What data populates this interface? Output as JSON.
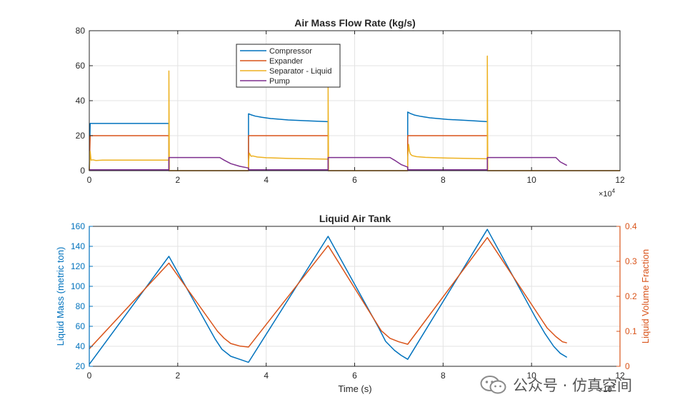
{
  "watermark": {
    "text": "公众号 · 仿真空间"
  },
  "colors": {
    "compressor": "#0072BD",
    "expander": "#D95319",
    "separator": "#EDB120",
    "pump": "#7E2F8E",
    "mass": "#0072BD",
    "fraction": "#D95319"
  },
  "chart_data": [
    {
      "type": "line",
      "title": "Air Mass Flow Rate (kg/s)",
      "xlabel": "",
      "ylabel": "",
      "xlim": [
        0,
        12
      ],
      "ylim": [
        0,
        80
      ],
      "xticks": [
        "0",
        "2",
        "4",
        "6",
        "8",
        "10",
        "12"
      ],
      "yticks": [
        "0",
        "20",
        "40",
        "60",
        "80"
      ],
      "x_exponent": "×10",
      "x_exponent_power": "4",
      "grid": true,
      "legend_position": "top-center",
      "series": [
        {
          "name": "Compressor",
          "x": [
            0,
            0.02,
            1.8,
            1.8,
            3.6,
            3.6,
            3.65,
            3.75,
            3.9,
            4.1,
            4.5,
            5.0,
            5.4,
            5.4,
            7.2,
            7.2,
            7.25,
            7.35,
            7.5,
            7.7,
            8.1,
            8.6,
            9.0,
            9.0,
            12
          ],
          "y": [
            0,
            27,
            27,
            0,
            0,
            32.5,
            32,
            31.2,
            30.5,
            29.8,
            29,
            28.4,
            28,
            0,
            0,
            33.5,
            32.8,
            31.8,
            31,
            30.2,
            29.3,
            28.6,
            28,
            0,
            0
          ]
        },
        {
          "name": "Expander",
          "x": [
            0,
            0.02,
            1.8,
            1.8,
            3.6,
            3.6,
            5.4,
            5.4,
            7.2,
            7.2,
            9.0,
            9.0,
            12
          ],
          "y": [
            0,
            20,
            20,
            0,
            0,
            20,
            20,
            0,
            0,
            20,
            20,
            0,
            0
          ]
        },
        {
          "name": "Separator - Liquid",
          "x": [
            0,
            0.02,
            0.04,
            0.08,
            0.15,
            0.3,
            1.8,
            1.8,
            1.81,
            3.6,
            3.6,
            3.62,
            3.64,
            3.66,
            3.7,
            3.8,
            4.0,
            4.5,
            5.4,
            5.4,
            5.41,
            7.2,
            7.2,
            7.22,
            7.24,
            7.26,
            7.3,
            7.4,
            7.6,
            8.1,
            9.0,
            9.0,
            9.01,
            12
          ],
          "y": [
            0,
            11,
            6,
            6.2,
            5.8,
            6,
            6,
            57,
            0,
            0,
            5,
            10,
            9,
            8.2,
            8.4,
            7.8,
            7.4,
            7,
            6.6,
            48,
            0,
            0,
            8,
            15,
            11,
            9.5,
            8.6,
            8,
            7.6,
            7.2,
            6.8,
            65.5,
            0,
            0
          ]
        },
        {
          "name": "Pump",
          "x": [
            0,
            1.8,
            1.8,
            2.95,
            3.05,
            3.2,
            3.4,
            3.6,
            3.6,
            5.4,
            5.4,
            6.8,
            6.9,
            7.05,
            7.2,
            7.2,
            9.0,
            9.0,
            10.55,
            10.65,
            10.8
          ],
          "y": [
            0.5,
            0.5,
            7.5,
            7.5,
            6,
            4,
            2.5,
            1.5,
            0.5,
            0.5,
            7.5,
            7.5,
            6,
            3.5,
            2,
            0.5,
            0.5,
            7.5,
            7.5,
            5,
            3
          ]
        }
      ]
    },
    {
      "type": "line",
      "title": "Liquid Air Tank",
      "xlabel": "Time (s)",
      "ylabel": "Liquid Mass (metric ton)",
      "y2label": "Liquid Volume Fraction",
      "xlim": [
        0,
        12
      ],
      "ylim": [
        20,
        160
      ],
      "y2lim": [
        0,
        0.4
      ],
      "xticks": [
        "0",
        "2",
        "4",
        "6",
        "8",
        "10",
        "12"
      ],
      "yticks": [
        "20",
        "40",
        "60",
        "80",
        "100",
        "120",
        "140",
        "160"
      ],
      "y2ticks": [
        "0",
        "0.1",
        "0.2",
        "0.3",
        "0.4"
      ],
      "x_exponent": "×10",
      "x_exponent_power": "4",
      "grid": true,
      "series": [
        {
          "name": "Liquid Mass",
          "axis": "left",
          "x": [
            0,
            1.8,
            2.85,
            3.0,
            3.2,
            3.4,
            3.6,
            5.4,
            6.55,
            6.7,
            6.9,
            7.05,
            7.2,
            9.0,
            10.1,
            10.3,
            10.5,
            10.65,
            10.8
          ],
          "y": [
            22,
            130,
            47,
            37,
            30,
            27,
            24,
            150,
            58,
            45,
            36,
            31,
            27,
            157,
            68,
            53,
            40,
            33,
            29
          ]
        },
        {
          "name": "Liquid Volume Fraction",
          "axis": "right",
          "x": [
            0,
            1.8,
            2.9,
            3.05,
            3.2,
            3.4,
            3.6,
            5.4,
            6.6,
            6.8,
            7.0,
            7.2,
            9.0,
            10.35,
            10.55,
            10.7,
            10.8
          ],
          "y": [
            0.05,
            0.295,
            0.1,
            0.08,
            0.065,
            0.058,
            0.055,
            0.345,
            0.102,
            0.08,
            0.07,
            0.063,
            0.368,
            0.11,
            0.085,
            0.07,
            0.067
          ]
        }
      ]
    }
  ]
}
